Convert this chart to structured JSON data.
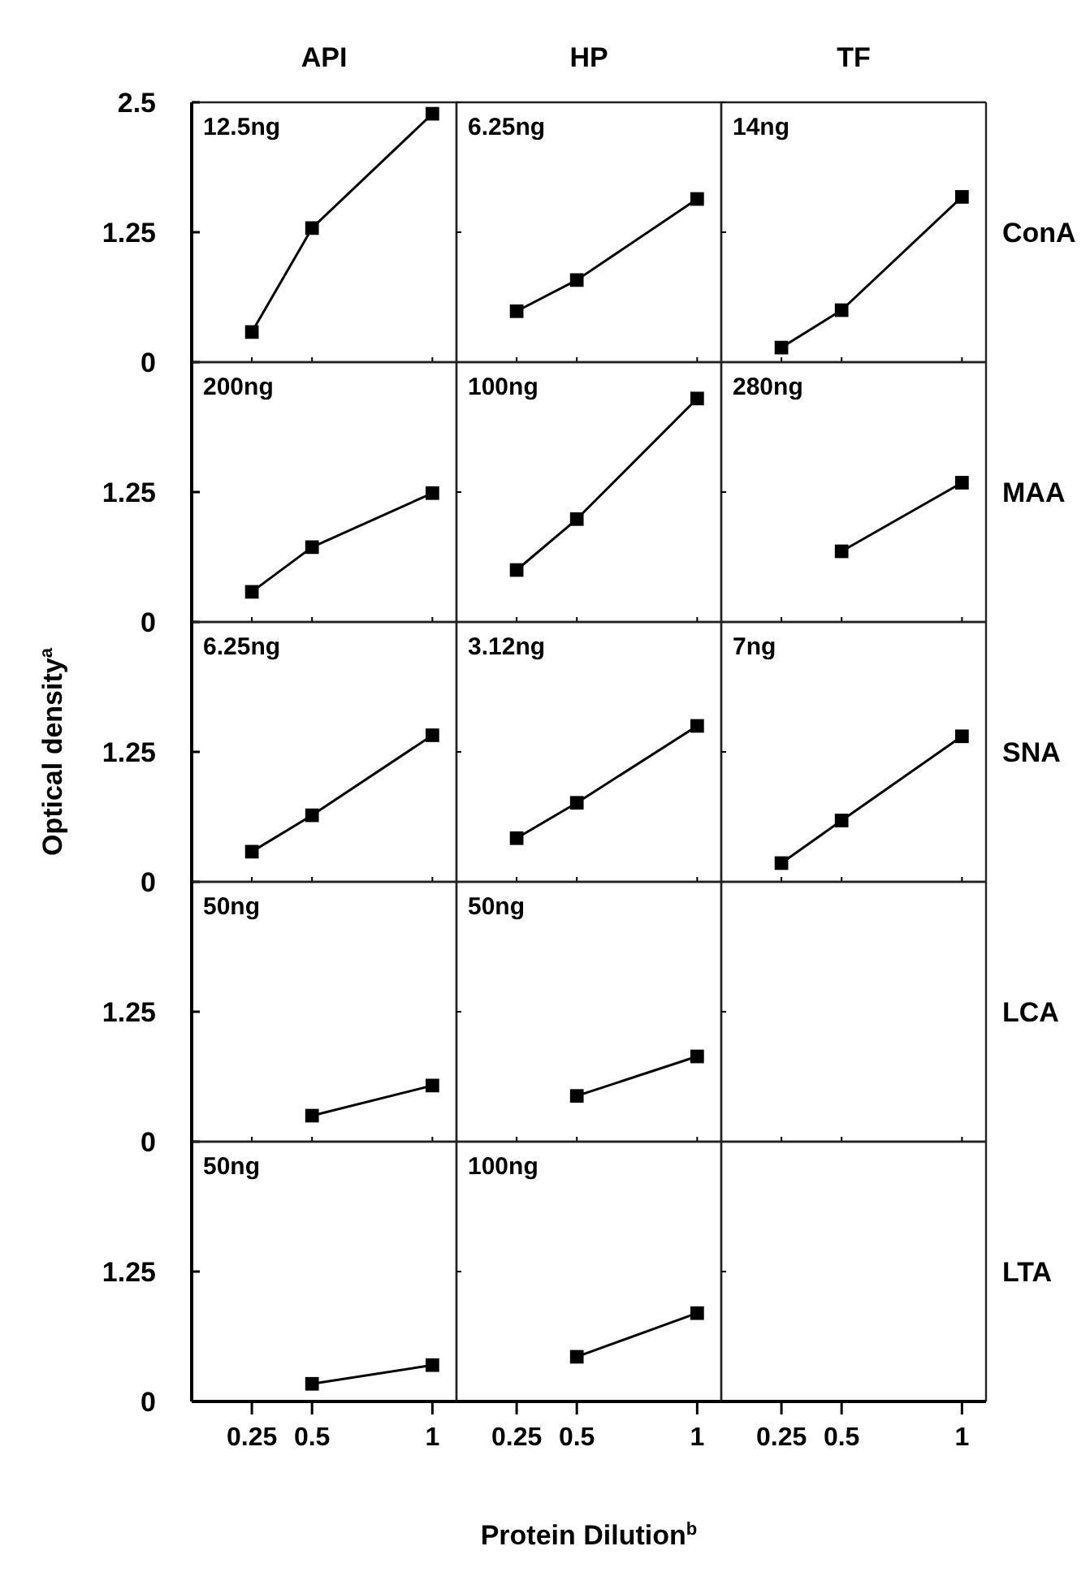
{
  "chart_data": [
    {
      "type": "line",
      "title": "API",
      "annotations": [
        "12.5ng"
      ],
      "xlim": [
        0,
        1.1
      ],
      "ylim": [
        0,
        2.5
      ],
      "xticks": [
        0.25,
        0.5,
        1
      ],
      "yticks": [
        0,
        1.25,
        2.5
      ],
      "tick_labels": "y",
      "marker": "square",
      "series": [
        {
          "color": "#000000",
          "x": [
            0.25,
            0.5,
            1
          ],
          "values": [
            0.29,
            1.29,
            2.39
          ]
        }
      ]
    },
    {
      "type": "line",
      "title": "HP",
      "annotations": [
        "6.25ng"
      ],
      "xlim": [
        0,
        1.1
      ],
      "ylim": [
        0,
        2.5
      ],
      "xticks": [
        0.25,
        0.5,
        1
      ],
      "yticks": [
        0,
        1.25,
        2.5
      ],
      "tick_labels": false,
      "marker": "square",
      "series": [
        {
          "color": "#000000",
          "x": [
            0.25,
            0.5,
            1
          ],
          "values": [
            0.49,
            0.79,
            1.57
          ]
        }
      ]
    },
    {
      "type": "line",
      "title": "TF",
      "y2label": "ConA",
      "annotations": [
        "14ng"
      ],
      "xlim": [
        0,
        1.1
      ],
      "ylim": [
        0,
        2.5
      ],
      "xticks": [
        0.25,
        0.5,
        1
      ],
      "yticks": [
        0,
        1.25,
        2.5
      ],
      "tick_labels": false,
      "marker": "square",
      "series": [
        {
          "color": "#000000",
          "x": [
            0.25,
            0.5,
            1
          ],
          "values": [
            0.14,
            0.5,
            1.59
          ]
        }
      ]
    },
    {
      "type": "line",
      "annotations": [
        "200ng"
      ],
      "xlim": [
        0,
        1.1
      ],
      "ylim": [
        0,
        2.5
      ],
      "xticks": [
        0.25,
        0.5,
        1
      ],
      "yticks": [
        0,
        1.25
      ],
      "tick_labels": "y",
      "marker": "square",
      "series": [
        {
          "color": "#000000",
          "x": [
            0.25,
            0.5,
            1
          ],
          "values": [
            0.29,
            0.72,
            1.24
          ]
        }
      ]
    },
    {
      "type": "line",
      "annotations": [
        "100ng"
      ],
      "xlim": [
        0,
        1.1
      ],
      "ylim": [
        0,
        2.5
      ],
      "xticks": [
        0.25,
        0.5,
        1
      ],
      "yticks": [
        0,
        1.25
      ],
      "tick_labels": false,
      "marker": "square",
      "series": [
        {
          "color": "#000000",
          "x": [
            0.25,
            0.5,
            1
          ],
          "values": [
            0.5,
            0.99,
            2.15
          ]
        }
      ]
    },
    {
      "type": "line",
      "y2label": "MAA",
      "annotations": [
        "280ng"
      ],
      "xlim": [
        0,
        1.1
      ],
      "ylim": [
        0,
        2.5
      ],
      "xticks": [
        0.25,
        0.5,
        1
      ],
      "yticks": [
        0,
        1.25
      ],
      "tick_labels": false,
      "marker": "square",
      "series": [
        {
          "color": "#000000",
          "x": [
            0.5,
            1
          ],
          "values": [
            0.68,
            1.34
          ]
        }
      ]
    },
    {
      "type": "line",
      "ylabel": "Optical density$^{a}$",
      "annotations": [
        "6.25ng"
      ],
      "xlim": [
        0,
        1.1
      ],
      "ylim": [
        0,
        2.5
      ],
      "xticks": [
        0.25,
        0.5,
        1
      ],
      "yticks": [
        0,
        1.25
      ],
      "tick_labels": "y",
      "marker": "square",
      "series": [
        {
          "color": "#000000",
          "x": [
            0.25,
            0.5,
            1
          ],
          "values": [
            0.29,
            0.64,
            1.41
          ]
        }
      ]
    },
    {
      "type": "line",
      "annotations": [
        "3.12ng"
      ],
      "xlim": [
        0,
        1.1
      ],
      "ylim": [
        0,
        2.5
      ],
      "xticks": [
        0.25,
        0.5,
        1
      ],
      "yticks": [
        0,
        1.25
      ],
      "tick_labels": false,
      "marker": "square",
      "series": [
        {
          "color": "#000000",
          "x": [
            0.25,
            0.5,
            1
          ],
          "values": [
            0.42,
            0.76,
            1.5
          ]
        }
      ]
    },
    {
      "type": "line",
      "y2label": "SNA",
      "annotations": [
        "7ng"
      ],
      "xlim": [
        0,
        1.1
      ],
      "ylim": [
        0,
        2.5
      ],
      "xticks": [
        0.25,
        0.5,
        1
      ],
      "yticks": [
        0,
        1.25
      ],
      "tick_labels": false,
      "marker": "square",
      "series": [
        {
          "color": "#000000",
          "x": [
            0.25,
            0.5,
            1
          ],
          "values": [
            0.18,
            0.59,
            1.4
          ]
        }
      ]
    },
    {
      "type": "line",
      "annotations": [
        "50ng"
      ],
      "xlim": [
        0,
        1.1
      ],
      "ylim": [
        0,
        2.5
      ],
      "xticks": [
        0.25,
        0.5,
        1
      ],
      "yticks": [
        0,
        1.25
      ],
      "tick_labels": "y",
      "marker": "square",
      "series": [
        {
          "color": "#000000",
          "x": [
            0.5,
            1
          ],
          "values": [
            0.25,
            0.54
          ]
        }
      ]
    },
    {
      "type": "line",
      "annotations": [
        "50ng"
      ],
      "xlim": [
        0,
        1.1
      ],
      "ylim": [
        0,
        2.5
      ],
      "xticks": [
        0.25,
        0.5,
        1
      ],
      "yticks": [
        0,
        1.25
      ],
      "tick_labels": false,
      "marker": "square",
      "series": [
        {
          "color": "#000000",
          "x": [
            0.5,
            1
          ],
          "values": [
            0.44,
            0.82
          ]
        }
      ]
    },
    {
      "type": "line",
      "y2label": "LCA",
      "xlim": [
        0,
        1.1
      ],
      "ylim": [
        0,
        2.5
      ],
      "xticks": [
        0.25,
        0.5,
        1
      ],
      "yticks": [
        0,
        1.25
      ],
      "tick_labels": false
    },
    {
      "type": "line",
      "annotations": [
        "50ng"
      ],
      "xlim": [
        0,
        1.1
      ],
      "ylim": [
        0,
        2.5
      ],
      "xticks": [
        0.25,
        0.5,
        1
      ],
      "yticks": [
        0,
        1.25
      ],
      "marker": "square",
      "series": [
        {
          "color": "#000000",
          "x": [
            0.5,
            1
          ],
          "values": [
            0.17,
            0.35
          ]
        }
      ]
    },
    {
      "type": "line",
      "xlabel": "Protein Dilution$^{b}$",
      "annotations": [
        "100ng"
      ],
      "xlim": [
        0,
        1.1
      ],
      "ylim": [
        0,
        2.5
      ],
      "xticks": [
        0.25,
        0.5,
        1
      ],
      "yticks": [
        0,
        1.25
      ],
      "tick_labels": "x",
      "marker": "square",
      "series": [
        {
          "color": "#000000",
          "x": [
            0.5,
            1
          ],
          "values": [
            0.43,
            0.85
          ]
        }
      ]
    },
    {
      "type": "line",
      "y2label": "LTA",
      "xlim": [
        0,
        1.1
      ],
      "ylim": [
        0,
        2.5
      ],
      "xticks": [
        0.25,
        0.5,
        1
      ],
      "yticks": [
        0,
        1.25
      ],
      "tick_labels": "x"
    }
  ]
}
